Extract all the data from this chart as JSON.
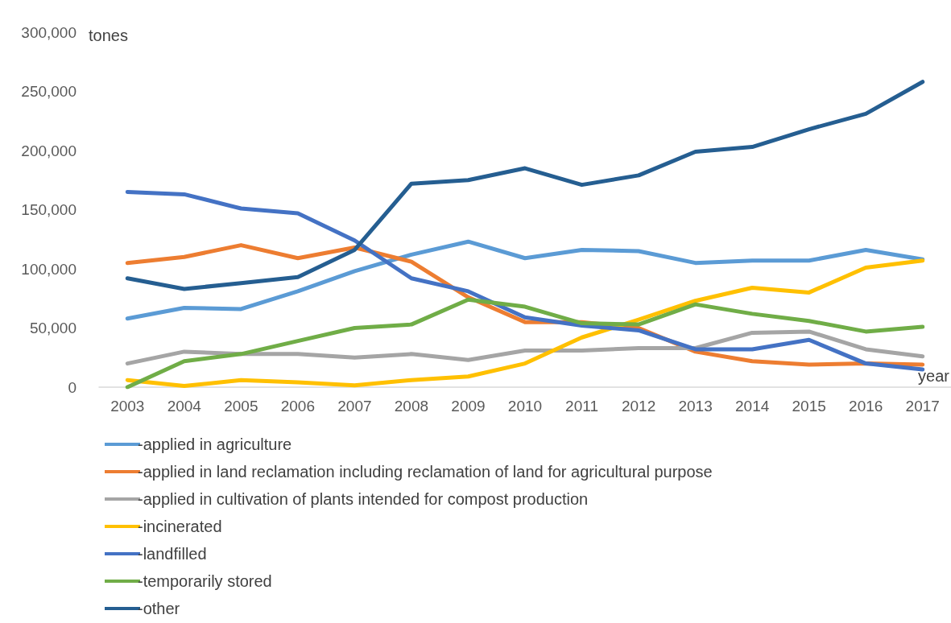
{
  "chart_data": {
    "type": "line",
    "xlabel": "year",
    "ylabel": "tones",
    "categories": [
      "2003",
      "2004",
      "2005",
      "2006",
      "2007",
      "2008",
      "2009",
      "2010",
      "2011",
      "2012",
      "2013",
      "2014",
      "2015",
      "2016",
      "2017"
    ],
    "ylim": [
      0,
      300000
    ],
    "yticks": [
      {
        "value": 0,
        "label": "0"
      },
      {
        "value": 50000,
        "label": "50,000"
      },
      {
        "value": 100000,
        "label": "100,000"
      },
      {
        "value": 150000,
        "label": "150,000"
      },
      {
        "value": 200000,
        "label": "200,000"
      },
      {
        "value": 250000,
        "label": "250,000"
      },
      {
        "value": 300000,
        "label": "300,000"
      }
    ],
    "grid": false,
    "legend": "bottom",
    "marker": "none",
    "line_style": "solid",
    "series": [
      {
        "name": "-applied in agriculture",
        "color": "#5b9bd5",
        "values": [
          58000,
          67000,
          66000,
          81000,
          98000,
          112000,
          123000,
          109000,
          116000,
          115000,
          105000,
          107000,
          107000,
          116000,
          108000
        ]
      },
      {
        "name": "-applied in land reclamation including reclamation of land for agricultural purpose",
        "color": "#ed7d31",
        "values": [
          105000,
          110000,
          120000,
          109000,
          118000,
          106000,
          76000,
          55000,
          55000,
          50000,
          30000,
          22000,
          19000,
          20000,
          19000
        ]
      },
      {
        "name": "-applied in cultivation of plants intended for compost production",
        "color": "#a5a5a5",
        "values": [
          20000,
          30000,
          28000,
          28000,
          25000,
          28000,
          23000,
          31000,
          31000,
          33000,
          33000,
          46000,
          47000,
          32000,
          26000
        ]
      },
      {
        "name": "-incinerated",
        "color": "#ffc000",
        "values": [
          6000,
          1000,
          6000,
          4000,
          1500,
          6000,
          9000,
          20000,
          42000,
          57000,
          73000,
          84000,
          80000,
          101000,
          107000
        ]
      },
      {
        "name": "-landfilled",
        "color": "#4472c4",
        "values": [
          165000,
          163000,
          151000,
          147000,
          124000,
          92000,
          81000,
          59000,
          52000,
          48000,
          32000,
          32000,
          40000,
          20000,
          15000
        ]
      },
      {
        "name": "-temporarily stored",
        "color": "#70ad47",
        "values": [
          0,
          22000,
          28000,
          39000,
          50000,
          53000,
          74000,
          68000,
          54000,
          53000,
          70000,
          62000,
          56000,
          47000,
          51000
        ]
      },
      {
        "name": "-other",
        "color": "#255e91",
        "values": [
          92000,
          83000,
          88000,
          93000,
          116000,
          172000,
          175000,
          185000,
          171000,
          179000,
          199000,
          203000,
          218000,
          231000,
          258000
        ]
      }
    ]
  }
}
